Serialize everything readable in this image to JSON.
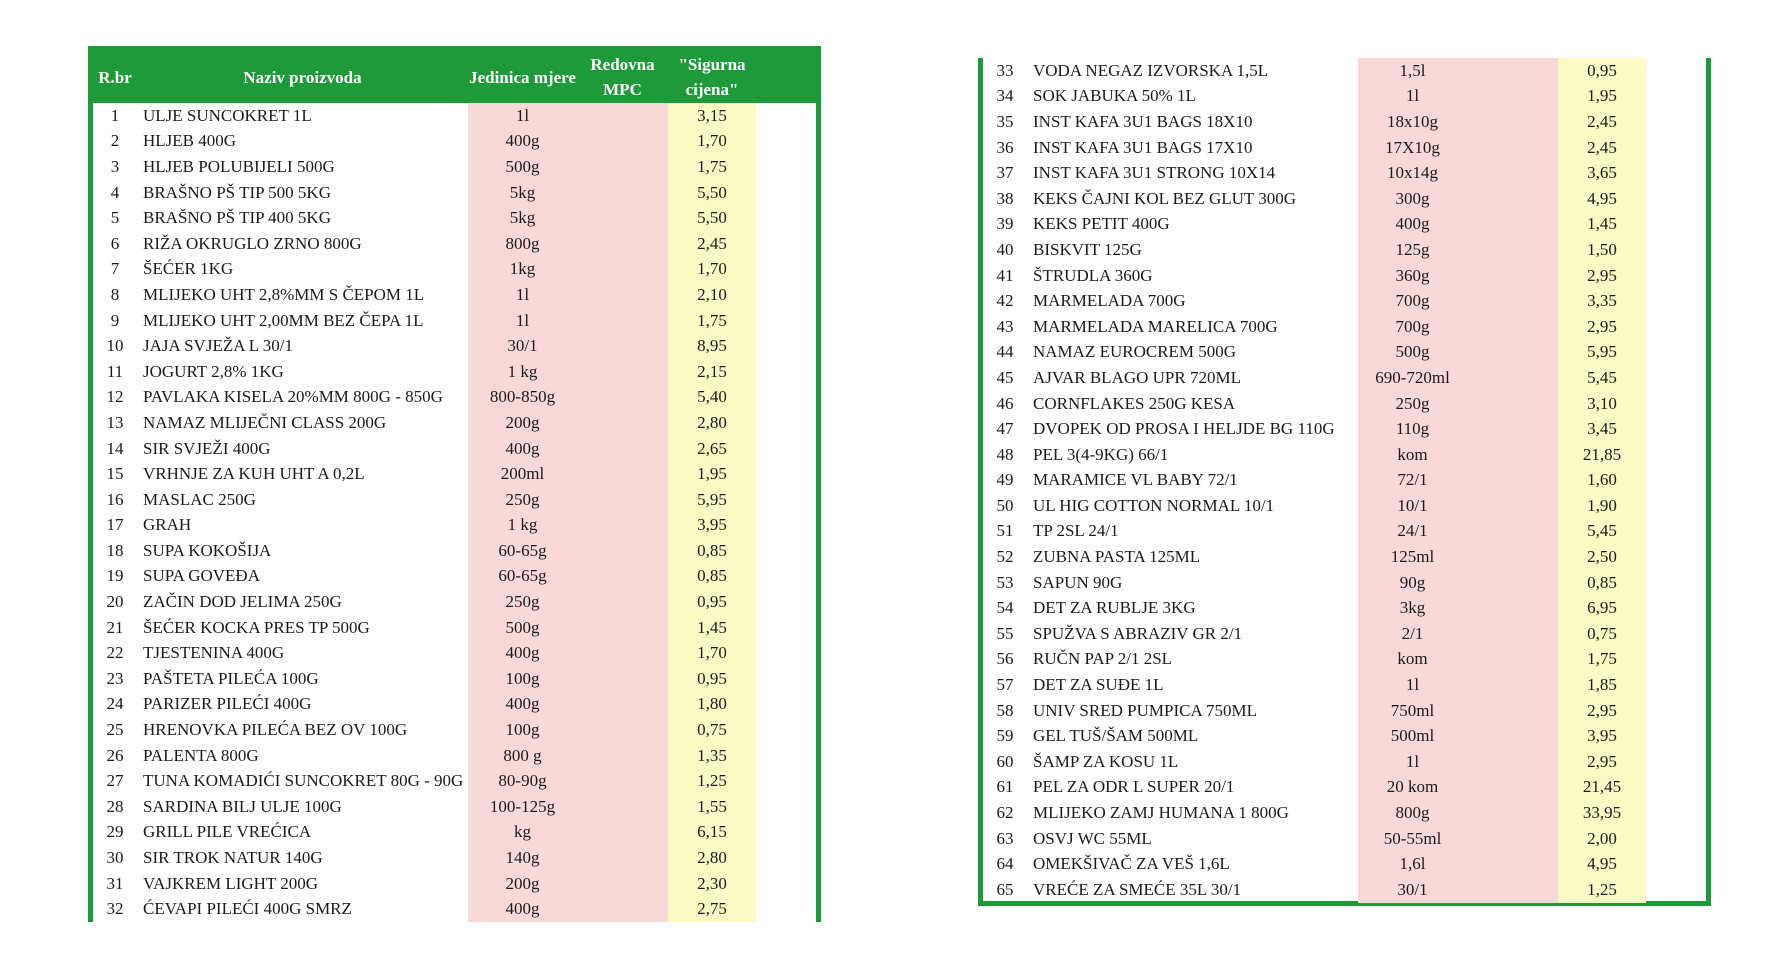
{
  "headers": {
    "rbr": "R.br",
    "naziv": "Naziv proizvoda",
    "jedinica": "Jedinica mjere",
    "redovna": "Redovna MPC",
    "sigurna": "\"Sigurna cijena\""
  },
  "left_rows": [
    {
      "n": "1",
      "name": "ULJE SUNCOKRET 1L",
      "unit": "1l",
      "price": "3,15"
    },
    {
      "n": "2",
      "name": "HLJEB 400G",
      "unit": "400g",
      "price": "1,70"
    },
    {
      "n": "3",
      "name": "HLJEB POLUBIJELI 500G",
      "unit": "500g",
      "price": "1,75"
    },
    {
      "n": "4",
      "name": "BRAŠNO PŠ TIP 500 5KG",
      "unit": "5kg",
      "price": "5,50"
    },
    {
      "n": "5",
      "name": "BRAŠNO PŠ TIP 400 5KG",
      "unit": "5kg",
      "price": "5,50"
    },
    {
      "n": "6",
      "name": "RIŽA OKRUGLO ZRNO 800G",
      "unit": "800g",
      "price": "2,45"
    },
    {
      "n": "7",
      "name": "ŠEĆER 1KG",
      "unit": "1kg",
      "price": "1,70"
    },
    {
      "n": "8",
      "name": "MLIJEKO UHT 2,8%MM S ČEPOM 1L",
      "unit": "1l",
      "price": "2,10"
    },
    {
      "n": "9",
      "name": "MLIJEKO UHT 2,00MM BEZ ČEPA 1L",
      "unit": "1l",
      "price": "1,75"
    },
    {
      "n": "10",
      "name": "JAJA SVJEŽA L 30/1",
      "unit": "30/1",
      "price": "8,95"
    },
    {
      "n": "11",
      "name": "JOGURT 2,8% 1KG",
      "unit": "1 kg",
      "price": "2,15"
    },
    {
      "n": "12",
      "name": "PAVLAKA KISELA 20%MM 800G - 850G",
      "unit": "800-850g",
      "price": "5,40"
    },
    {
      "n": "13",
      "name": "NAMAZ MLIJEČNI CLASS 200G",
      "unit": "200g",
      "price": "2,80"
    },
    {
      "n": "14",
      "name": "SIR SVJEŽI 400G",
      "unit": "400g",
      "price": "2,65"
    },
    {
      "n": "15",
      "name": "VRHNJE ZA KUH UHT A 0,2L",
      "unit": "200ml",
      "price": "1,95"
    },
    {
      "n": "16",
      "name": "MASLAC 250G",
      "unit": "250g",
      "price": "5,95"
    },
    {
      "n": "17",
      "name": "GRAH",
      "unit": "1 kg",
      "price": "3,95"
    },
    {
      "n": "18",
      "name": "SUPA KOKOŠIJA",
      "unit": "60-65g",
      "price": "0,85"
    },
    {
      "n": "19",
      "name": "SUPA GOVEĐA",
      "unit": "60-65g",
      "price": "0,85"
    },
    {
      "n": "20",
      "name": "ZAČIN DOD JELIMA 250G",
      "unit": "250g",
      "price": "0,95"
    },
    {
      "n": "21",
      "name": "ŠEĆER KOCKA PRES TP 500G",
      "unit": "500g",
      "price": "1,45"
    },
    {
      "n": "22",
      "name": "TJESTENINA 400G",
      "unit": "400g",
      "price": "1,70"
    },
    {
      "n": "23",
      "name": "PAŠTETA PILEĆA 100G",
      "unit": "100g",
      "price": "0,95"
    },
    {
      "n": "24",
      "name": "PARIZER PILEĆI 400G",
      "unit": "400g",
      "price": "1,80"
    },
    {
      "n": "25",
      "name": "HRENOVKA PILEĆA BEZ OV 100G",
      "unit": "100g",
      "price": "0,75"
    },
    {
      "n": "26",
      "name": "PALENTA 800G",
      "unit": "800 g",
      "price": "1,35"
    },
    {
      "n": "27",
      "name": "TUNA KOMADIĆI SUNCOKRET 80G - 90G",
      "unit": "80-90g",
      "price": "1,25"
    },
    {
      "n": "28",
      "name": "SARDINA BILJ ULJE 100G",
      "unit": "100-125g",
      "price": "1,55"
    },
    {
      "n": "29",
      "name": "GRILL PILE VREĆICA",
      "unit": "kg",
      "price": "6,15"
    },
    {
      "n": "30",
      "name": "SIR TROK NATUR 140G",
      "unit": "140g",
      "price": "2,80"
    },
    {
      "n": "31",
      "name": "VAJKREM LIGHT 200G",
      "unit": "200g",
      "price": "2,30"
    },
    {
      "n": "32",
      "name": "ĆEVAPI PILEĆI 400G SMRZ",
      "unit": "400g",
      "price": "2,75"
    }
  ],
  "right_rows": [
    {
      "n": "33",
      "name": "VODA NEGAZ IZVORSKA 1,5L",
      "unit": "1,5l",
      "price": "0,95"
    },
    {
      "n": "34",
      "name": "SOK JABUKA 50% 1L",
      "unit": "1l",
      "price": "1,95"
    },
    {
      "n": "35",
      "name": "INST KAFA  3U1 BAGS 18X10",
      "unit": "18x10g",
      "price": "2,45"
    },
    {
      "n": "36",
      "name": "INST KAFA  3U1 BAGS 17X10",
      "unit": "17X10g",
      "price": "2,45"
    },
    {
      "n": "37",
      "name": "INST KAFA 3U1 STRONG 10X14",
      "unit": "10x14g",
      "price": "3,65"
    },
    {
      "n": "38",
      "name": "KEKS ČAJNI KOL BEZ GLUT 300G",
      "unit": "300g",
      "price": "4,95"
    },
    {
      "n": "39",
      "name": "KEKS PETIT 400G",
      "unit": "400g",
      "price": "1,45"
    },
    {
      "n": "40",
      "name": "BISKVIT 125G",
      "unit": "125g",
      "price": "1,50"
    },
    {
      "n": "41",
      "name": "ŠTRUDLA 360G",
      "unit": "360g",
      "price": "2,95"
    },
    {
      "n": "42",
      "name": "MARMELADA 700G",
      "unit": "700g",
      "price": "3,35"
    },
    {
      "n": "43",
      "name": "MARMELADA MARELICA 700G",
      "unit": "700g",
      "price": "2,95"
    },
    {
      "n": "44",
      "name": "NAMAZ EUROCREM 500G",
      "unit": "500g",
      "price": "5,95"
    },
    {
      "n": "45",
      "name": "AJVAR BLAGO UPR 720ML",
      "unit": "690-720ml",
      "price": "5,45"
    },
    {
      "n": "46",
      "name": "CORNFLAKES 250G KESA",
      "unit": "250g",
      "price": "3,10"
    },
    {
      "n": "47",
      "name": "DVOPEK OD PROSA I HELJDE BG 110G",
      "unit": "110g",
      "price": "3,45"
    },
    {
      "n": "48",
      "name": "PEL 3(4-9KG) 66/1",
      "unit": "kom",
      "price": "21,85"
    },
    {
      "n": "49",
      "name": "MARAMICE VL BABY 72/1",
      "unit": "72/1",
      "price": "1,60"
    },
    {
      "n": "50",
      "name": "UL HIG COTTON NORMAL 10/1",
      "unit": "10/1",
      "price": "1,90"
    },
    {
      "n": "51",
      "name": "TP 2SL 24/1",
      "unit": "24/1",
      "price": "5,45"
    },
    {
      "n": "52",
      "name": "ZUBNA PASTA 125ML",
      "unit": "125ml",
      "price": "2,50"
    },
    {
      "n": "53",
      "name": "SAPUN 90G",
      "unit": "90g",
      "price": "0,85"
    },
    {
      "n": "54",
      "name": "DET ZA RUBLJE 3KG",
      "unit": "3kg",
      "price": "6,95"
    },
    {
      "n": "55",
      "name": "SPUŽVA S ABRAZIV GR  2/1",
      "unit": "2/1",
      "price": "0,75"
    },
    {
      "n": "56",
      "name": "RUČN PAP 2/1 2SL",
      "unit": "kom",
      "price": "1,75"
    },
    {
      "n": "57",
      "name": "DET  ZA SUĐE 1L",
      "unit": "1l",
      "price": "1,85"
    },
    {
      "n": "58",
      "name": "UNIV SRED  PUMPICA 750ML",
      "unit": "750ml",
      "price": "2,95"
    },
    {
      "n": "59",
      "name": "GEL TUŠ/ŠAM 500ML",
      "unit": "500ml",
      "price": "3,95"
    },
    {
      "n": "60",
      "name": "ŠAMP  ZA KOSU 1L",
      "unit": "1l",
      "price": "2,95"
    },
    {
      "n": "61",
      "name": "PEL ZA ODR L SUPER 20/1",
      "unit": "20 kom",
      "price": "21,45"
    },
    {
      "n": "62",
      "name": "MLIJEKO ZAMJ HUMANA 1 800G",
      "unit": "800g",
      "price": "33,95"
    },
    {
      "n": "63",
      "name": "OSVJ WC   55ML",
      "unit": "50-55ml",
      "price": "2,00"
    },
    {
      "n": "64",
      "name": "OMEKŠIVAČ ZA VEŠ 1,6L",
      "unit": "1,6l",
      "price": "4,95"
    },
    {
      "n": "65",
      "name": "VREĆE ZA SMEĆE  35L 30/1",
      "unit": "30/1",
      "price": "1,25"
    }
  ]
}
